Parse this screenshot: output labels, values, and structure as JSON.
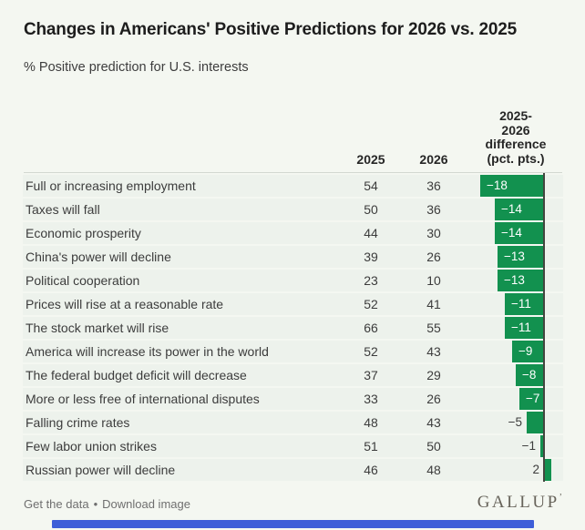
{
  "header": {
    "title": "Changes in Americans' Positive Predictions for 2026 vs. 2025",
    "subtitle": "% Positive prediction for U.S. interests"
  },
  "table": {
    "col_2025": "2025",
    "col_2026": "2026",
    "col_diff_line1": "2025-",
    "col_diff_line2": "2026",
    "col_diff_line3": "difference",
    "col_diff_line4": "(pct. pts.)",
    "rows": [
      {
        "label": "Full or increasing employment",
        "v2025": "54",
        "v2026": "36",
        "diff": -18,
        "diff_label": "−18"
      },
      {
        "label": "Taxes will fall",
        "v2025": "50",
        "v2026": "36",
        "diff": -14,
        "diff_label": "−14"
      },
      {
        "label": "Economic prosperity",
        "v2025": "44",
        "v2026": "30",
        "diff": -14,
        "diff_label": "−14"
      },
      {
        "label": "China's power will decline",
        "v2025": "39",
        "v2026": "26",
        "diff": -13,
        "diff_label": "−13"
      },
      {
        "label": "Political cooperation",
        "v2025": "23",
        "v2026": "10",
        "diff": -13,
        "diff_label": "−13"
      },
      {
        "label": "Prices will rise at a reasonable rate",
        "v2025": "52",
        "v2026": "41",
        "diff": -11,
        "diff_label": "−11"
      },
      {
        "label": "The stock market will rise",
        "v2025": "66",
        "v2026": "55",
        "diff": -11,
        "diff_label": "−11"
      },
      {
        "label": "America will increase its power in the world",
        "v2025": "52",
        "v2026": "43",
        "diff": -9,
        "diff_label": "−9"
      },
      {
        "label": "The federal budget deficit will decrease",
        "v2025": "37",
        "v2026": "29",
        "diff": -8,
        "diff_label": "−8"
      },
      {
        "label": "More or less free of international disputes",
        "v2025": "33",
        "v2026": "26",
        "diff": -7,
        "diff_label": "−7"
      },
      {
        "label": "Falling crime rates",
        "v2025": "48",
        "v2026": "43",
        "diff": -5,
        "diff_label": "−5"
      },
      {
        "label": "Few labor union strikes",
        "v2025": "51",
        "v2026": "50",
        "diff": -1,
        "diff_label": "−1"
      },
      {
        "label": "Russian power will decline",
        "v2025": "46",
        "v2026": "48",
        "diff": 2,
        "diff_label": "2"
      }
    ]
  },
  "chart_data": {
    "type": "bar",
    "orientation": "horizontal",
    "title": "Changes in Americans' Positive Predictions for 2026 vs. 2025",
    "subtitle": "% Positive prediction for U.S. interests",
    "categories": [
      "Full or increasing employment",
      "Taxes will fall",
      "Economic prosperity",
      "China's power will decline",
      "Political cooperation",
      "Prices will rise at a reasonable rate",
      "The stock market will rise",
      "America will increase its power in the world",
      "The federal budget deficit will decrease",
      "More or less free of international disputes",
      "Falling crime rates",
      "Few labor union strikes",
      "Russian power will decline"
    ],
    "series": [
      {
        "name": "2025",
        "values": [
          54,
          50,
          44,
          39,
          23,
          52,
          66,
          52,
          37,
          33,
          48,
          51,
          46
        ]
      },
      {
        "name": "2026",
        "values": [
          36,
          36,
          30,
          26,
          10,
          41,
          55,
          43,
          29,
          26,
          43,
          50,
          48
        ]
      },
      {
        "name": "2025-2026 difference (pct. pts.)",
        "values": [
          -18,
          -14,
          -14,
          -13,
          -13,
          -11,
          -11,
          -9,
          -8,
          -7,
          -5,
          -1,
          2
        ]
      }
    ],
    "bar_color": "#12914f",
    "xlim": [
      -18,
      2
    ],
    "grid": false,
    "legend_position": "none"
  },
  "footer": {
    "link_get_data": "Get the data",
    "separator": "•",
    "link_download": "Download image",
    "logo": "GALLUP",
    "logo_tm": "’"
  },
  "colors": {
    "bar_green": "#12914f",
    "row_bg": "#edf2ec",
    "page_bg": "#f4f7f1",
    "baseline": "#43463f",
    "scrollbar_blue": "#3d5ed8"
  }
}
